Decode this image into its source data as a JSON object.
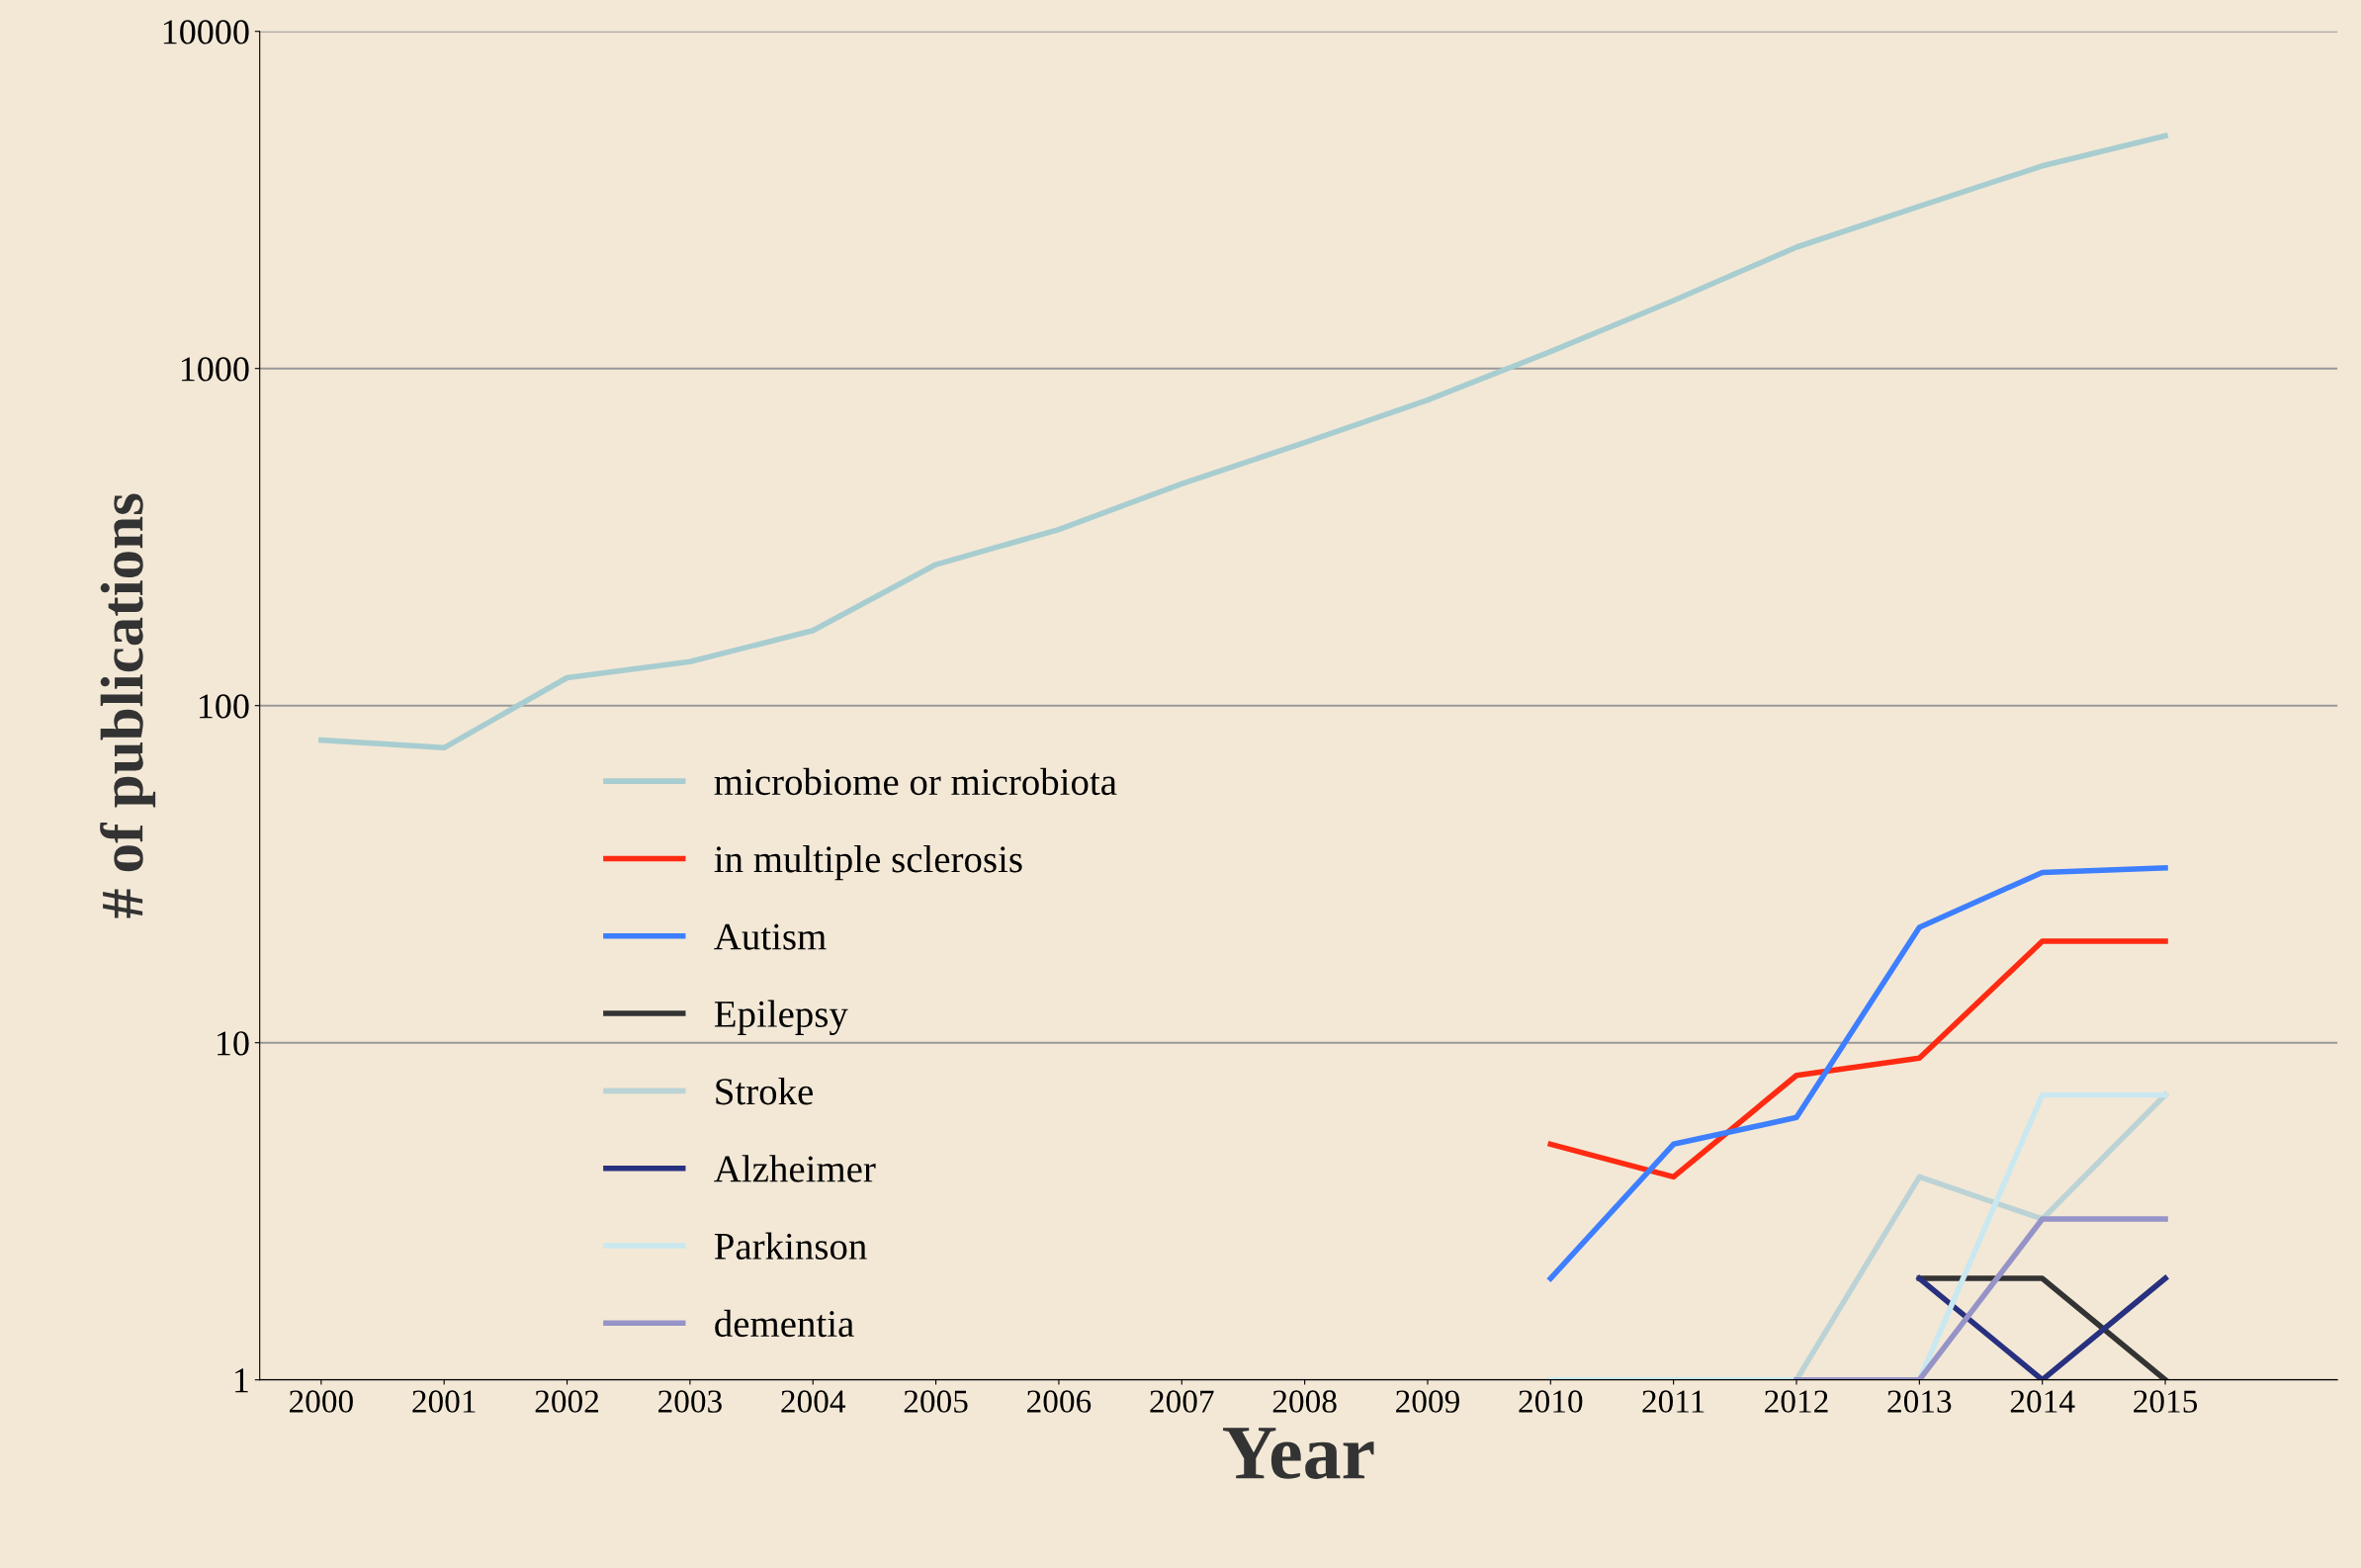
{
  "chart_data": {
    "type": "line",
    "xlabel": "Year",
    "ylabel": "# of publications",
    "categories": [
      "2000",
      "2001",
      "2002",
      "2003",
      "2004",
      "2005",
      "2006",
      "2007",
      "2008",
      "2009",
      "2010",
      "2011",
      "2012",
      "2013",
      "2014",
      "2015"
    ],
    "series": [
      {
        "name": "microbiome or microbiota",
        "color": "#a8cdd0",
        "values": [
          79,
          75,
          121,
          135,
          167,
          262,
          333,
          455,
          603,
          806,
          1122,
          1590,
          2290,
          3030,
          3990,
          4900
        ]
      },
      {
        "name": "in multiple sclerosis",
        "color": "#ff2a12",
        "values": [
          null,
          null,
          null,
          null,
          null,
          null,
          null,
          null,
          null,
          null,
          5,
          4,
          8,
          9,
          20,
          20
        ]
      },
      {
        "name": "Autism",
        "color": "#3d7fff",
        "values": [
          null,
          null,
          null,
          null,
          null,
          null,
          null,
          null,
          null,
          null,
          2,
          5,
          6,
          22,
          32,
          33
        ]
      },
      {
        "name": "Epilepsy",
        "color": "#333333",
        "values": [
          null,
          null,
          null,
          null,
          null,
          null,
          null,
          null,
          null,
          null,
          null,
          null,
          null,
          2,
          2,
          1
        ]
      },
      {
        "name": "Stroke",
        "color": "#bcd3d6",
        "values": [
          null,
          null,
          null,
          null,
          null,
          null,
          null,
          null,
          null,
          null,
          1,
          1,
          1,
          4,
          3,
          7
        ]
      },
      {
        "name": "Alzheimer",
        "color": "#28317f",
        "values": [
          null,
          null,
          null,
          null,
          null,
          null,
          null,
          null,
          null,
          null,
          null,
          null,
          null,
          2,
          1,
          2
        ]
      },
      {
        "name": "Parkinson",
        "color": "#c9e8f0",
        "values": [
          null,
          null,
          null,
          null,
          null,
          null,
          null,
          null,
          null,
          null,
          1,
          1,
          1,
          1,
          7,
          7
        ]
      },
      {
        "name": "dementia",
        "color": "#9693c8",
        "values": [
          null,
          null,
          null,
          null,
          null,
          null,
          null,
          null,
          null,
          null,
          null,
          null,
          1,
          1,
          3,
          3
        ]
      }
    ],
    "log": true,
    "ylim": [
      1,
      10000
    ],
    "yticks": [
      1,
      10,
      100,
      1000,
      10000
    ],
    "grid": "y",
    "legend": "center left",
    "marker": "none",
    "line_style": "solid"
  }
}
